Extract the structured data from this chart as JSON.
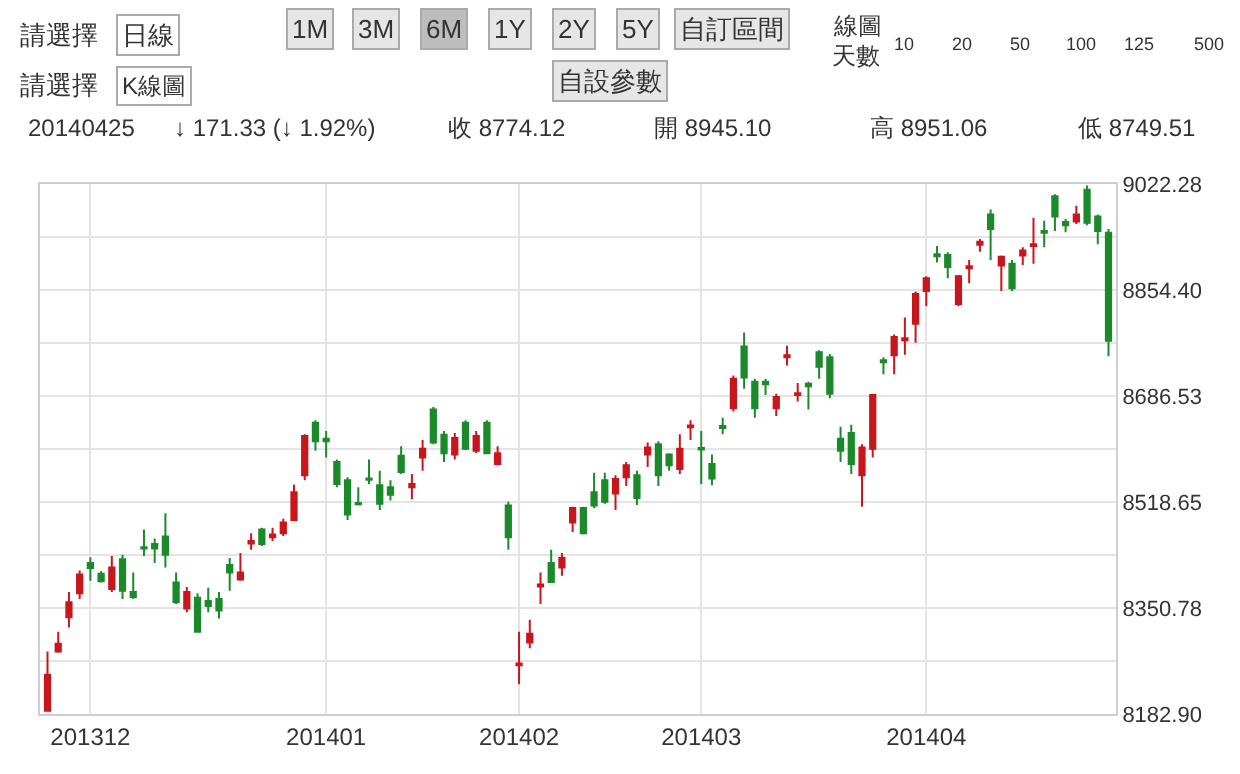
{
  "chart_data": {
    "type": "candlestick",
    "annotations": [
      "請選擇",
      "日線",
      "1M",
      "3M",
      "6M",
      "1Y",
      "2Y",
      "5Y",
      "自訂區間",
      "線圖",
      "天數",
      "10",
      "20",
      "50",
      "100",
      "125",
      "500",
      "請選擇",
      "K線圖",
      "自設參數",
      "20140425",
      "↓ 171.33 (↓ 1.92%)",
      "收 8774.12",
      "開 8945.10",
      "高 8951.06",
      "低 8749.51"
    ],
    "categories": [
      null,
      null,
      null,
      null,
      "201312",
      null,
      null,
      null,
      null,
      null,
      null,
      null,
      null,
      null,
      null,
      null,
      null,
      null,
      null,
      null,
      null,
      null,
      null,
      null,
      null,
      null,
      "201401",
      null,
      null,
      null,
      null,
      null,
      null,
      null,
      null,
      null,
      null,
      null,
      null,
      null,
      null,
      null,
      null,
      null,
      "201402",
      null,
      null,
      null,
      null,
      null,
      null,
      null,
      null,
      null,
      null,
      null,
      null,
      null,
      null,
      null,
      null,
      "201403",
      null,
      null,
      null,
      null,
      null,
      null,
      null,
      null,
      null,
      null,
      null,
      null,
      null,
      null,
      null,
      null,
      null,
      null,
      null,
      null,
      "201404",
      null,
      null,
      null,
      null,
      null,
      null,
      null,
      null,
      null,
      null,
      null,
      null,
      null,
      null,
      null,
      null,
      null
    ],
    "ohlc": [
      [
        8188,
        8282,
        8188,
        8245
      ],
      [
        8282,
        8313,
        8280,
        8294
      ],
      [
        8336,
        8376,
        8320,
        8360
      ],
      [
        8374,
        8410,
        8365,
        8404
      ],
      [
        8422,
        8431,
        8394,
        8414
      ],
      [
        8405,
        8409,
        8391,
        8393
      ],
      [
        8381,
        8433,
        8376,
        8415
      ],
      [
        8428,
        8435,
        8365,
        8378
      ],
      [
        8376,
        8407,
        8365,
        8368
      ],
      [
        8447,
        8475,
        8433,
        8445
      ],
      [
        8452,
        8461,
        8422,
        8445
      ],
      [
        8464,
        8501,
        8415,
        8435
      ],
      [
        8391,
        8407,
        8357,
        8360
      ],
      [
        8350,
        8384,
        8344,
        8376
      ],
      [
        8367,
        8374,
        8313,
        8313
      ],
      [
        8362,
        8383,
        8344,
        8354
      ],
      [
        8365,
        8376,
        8334,
        8347
      ],
      [
        8419,
        8430,
        8378,
        8407
      ],
      [
        8396,
        8438,
        8394,
        8407
      ],
      [
        8453,
        8469,
        8443,
        8457
      ],
      [
        8475,
        8478,
        8449,
        8452
      ],
      [
        8463,
        8478,
        8457,
        8467
      ],
      [
        8469,
        8492,
        8465,
        8486
      ],
      [
        8490,
        8546,
        8488,
        8534
      ],
      [
        8561,
        8626,
        8553,
        8623
      ],
      [
        8644,
        8648,
        8600,
        8615
      ],
      [
        8619,
        8631,
        8589,
        8615
      ],
      [
        8582,
        8586,
        8542,
        8547
      ],
      [
        8553,
        8558,
        8490,
        8499
      ],
      [
        8517,
        8542,
        8513,
        8515
      ],
      [
        8556,
        8586,
        8547,
        8554
      ],
      [
        8545,
        8568,
        8506,
        8516
      ],
      [
        8542,
        8553,
        8521,
        8530
      ],
      [
        8592,
        8607,
        8563,
        8566
      ],
      [
        8542,
        8563,
        8523,
        8547
      ],
      [
        8589,
        8617,
        8568,
        8603
      ],
      [
        8665,
        8669,
        8610,
        8613
      ],
      [
        8625,
        8631,
        8582,
        8596
      ],
      [
        8594,
        8628,
        8586,
        8620
      ],
      [
        8644,
        8648,
        8601,
        8603
      ],
      [
        8600,
        8631,
        8596,
        8623
      ],
      [
        8644,
        8648,
        8596,
        8596
      ],
      [
        8579,
        8607,
        8577,
        8596
      ],
      [
        8513,
        8519,
        8443,
        8463
      ],
      [
        8260,
        8313,
        8230,
        8263
      ],
      [
        8296,
        8332,
        8287,
        8310
      ],
      [
        8385,
        8407,
        8357,
        8388
      ],
      [
        8422,
        8443,
        8392,
        8392
      ],
      [
        8415,
        8438,
        8402,
        8430
      ],
      [
        8486,
        8511,
        8471,
        8509
      ],
      [
        8509,
        8511,
        8467,
        8469
      ],
      [
        8534,
        8565,
        8509,
        8513
      ],
      [
        8553,
        8565,
        8516,
        8519
      ],
      [
        8532,
        8561,
        8506,
        8555
      ],
      [
        8558,
        8582,
        8544,
        8577
      ],
      [
        8561,
        8568,
        8514,
        8525
      ],
      [
        8594,
        8613,
        8574,
        8605
      ],
      [
        8610,
        8615,
        8544,
        8561
      ],
      [
        8594,
        8596,
        8568,
        8577
      ],
      [
        8571,
        8626,
        8563,
        8603
      ],
      [
        8637,
        8648,
        8617,
        8640
      ],
      [
        8604,
        8631,
        8547,
        8602
      ],
      [
        8579,
        8594,
        8545,
        8556
      ],
      [
        8639,
        8652,
        8626,
        8636
      ],
      [
        8667,
        8719,
        8662,
        8714
      ],
      [
        8765,
        8787,
        8698,
        8716
      ],
      [
        8709,
        8714,
        8652,
        8667
      ],
      [
        8709,
        8714,
        8688,
        8705
      ],
      [
        8667,
        8690,
        8655,
        8685
      ],
      [
        8748,
        8766,
        8735,
        8751
      ],
      [
        8688,
        8707,
        8678,
        8691
      ],
      [
        8706,
        8709,
        8665,
        8702
      ],
      [
        8756,
        8759,
        8714,
        8733
      ],
      [
        8748,
        8753,
        8683,
        8690
      ],
      [
        8619,
        8638,
        8582,
        8600
      ],
      [
        8628,
        8641,
        8563,
        8579
      ],
      [
        8561,
        8610,
        8511,
        8605
      ],
      [
        8603,
        8690,
        8589,
        8688
      ],
      [
        8743,
        8748,
        8721,
        8740
      ],
      [
        8751,
        8784,
        8721,
        8780
      ],
      [
        8775,
        8811,
        8752,
        8778
      ],
      [
        8801,
        8852,
        8771,
        8848
      ],
      [
        8853,
        8876,
        8829,
        8873
      ],
      [
        8911,
        8924,
        8898,
        8908
      ],
      [
        8910,
        8914,
        8873,
        8891
      ],
      [
        8832,
        8878,
        8829,
        8876
      ],
      [
        8889,
        8902,
        8865,
        8892
      ],
      [
        8926,
        8935,
        8915,
        8931
      ],
      [
        8974,
        8982,
        8902,
        8951
      ],
      [
        8893,
        8909,
        8853,
        8907
      ],
      [
        8896,
        8902,
        8853,
        8857
      ],
      [
        8909,
        8922,
        8894,
        8917
      ],
      [
        8924,
        8969,
        8896,
        8927
      ],
      [
        8948,
        8964,
        8922,
        8945
      ],
      [
        9003,
        9006,
        8948,
        8971
      ],
      [
        8962,
        8967,
        8946,
        8957
      ],
      [
        8963,
        8988,
        8959,
        8974
      ],
      [
        9013,
        9020,
        8957,
        8961
      ],
      [
        8971,
        8974,
        8927,
        8948
      ],
      [
        8945.1,
        8951.06,
        8749.51,
        8774.12
      ]
    ],
    "colors": [
      "#c8161d",
      "#c8161d",
      "#c8161d",
      "#c8161d",
      "#1b8a2a",
      "#1b8a2a",
      "#c8161d",
      "#1b8a2a",
      "#1b8a2a",
      "#1b8a2a",
      "#1b8a2a",
      "#1b8a2a",
      "#1b8a2a",
      "#c8161d",
      "#1b8a2a",
      "#1b8a2a",
      "#1b8a2a",
      "#1b8a2a",
      "#c8161d",
      "#c8161d",
      "#1b8a2a",
      "#c8161d",
      "#c8161d",
      "#c8161d",
      "#c8161d",
      "#1b8a2a",
      "#1b8a2a",
      "#1b8a2a",
      "#1b8a2a",
      "#1b8a2a",
      "#1b8a2a",
      "#1b8a2a",
      "#1b8a2a",
      "#1b8a2a",
      "#c8161d",
      "#c8161d",
      "#1b8a2a",
      "#1b8a2a",
      "#c8161d",
      "#1b8a2a",
      "#c8161d",
      "#1b8a2a",
      "#c8161d",
      "#1b8a2a",
      "#c8161d",
      "#c8161d",
      "#c8161d",
      "#1b8a2a",
      "#c8161d",
      "#c8161d",
      "#1b8a2a",
      "#1b8a2a",
      "#1b8a2a",
      "#c8161d",
      "#c8161d",
      "#1b8a2a",
      "#c8161d",
      "#1b8a2a",
      "#1b8a2a",
      "#c8161d",
      "#c8161d",
      "#1b8a2a",
      "#1b8a2a",
      "#1b8a2a",
      "#c8161d",
      "#1b8a2a",
      "#1b8a2a",
      "#1b8a2a",
      "#c8161d",
      "#c8161d",
      "#c8161d",
      "#1b8a2a",
      "#1b8a2a",
      "#1b8a2a",
      "#1b8a2a",
      "#1b8a2a",
      "#c8161d",
      "#c8161d",
      "#1b8a2a",
      "#c8161d",
      "#c8161d",
      "#c8161d",
      "#c8161d",
      "#1b8a2a",
      "#1b8a2a",
      "#c8161d",
      "#c8161d",
      "#c8161d",
      "#1b8a2a",
      "#c8161d",
      "#1b8a2a",
      "#c8161d",
      "#c8161d",
      "#1b8a2a",
      "#1b8a2a",
      "#1b8a2a",
      "#c8161d",
      "#1b8a2a",
      "#1b8a2a",
      "#1b8a2a"
    ],
    "ylim": [
      8182.9,
      9022.28
    ],
    "yticks": [
      {
        "value": 8182.9,
        "label": "8182.90"
      },
      {
        "value": 8266.84,
        "label": null
      },
      8350.78,
      {
        "value": 8434.72,
        "label": null
      },
      8518.65,
      {
        "value": 8602.59,
        "label": null
      },
      8686.53,
      {
        "value": 8770.47,
        "label": null
      },
      {
        "value": 8854.4,
        "label": "8854.40"
      },
      {
        "value": 8938.34,
        "label": null
      },
      9022.28
    ],
    "grid": true
  }
}
